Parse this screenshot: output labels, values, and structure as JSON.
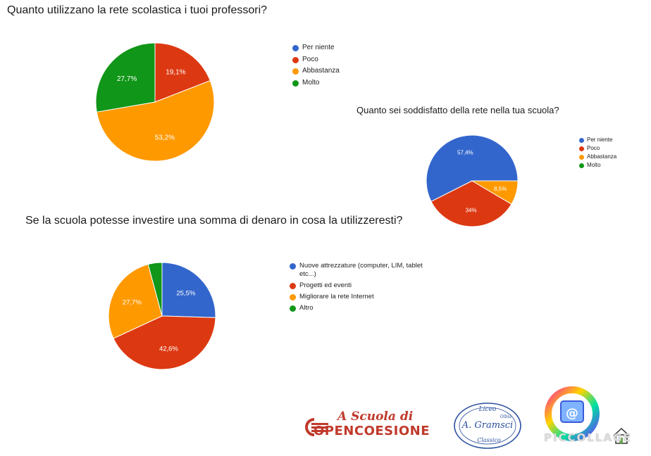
{
  "chart_data": [
    {
      "type": "pie",
      "title": "Quanto utilizzano la rete scolastica i tuoi professori?",
      "categories": [
        "Per niente",
        "Poco",
        "Abbastanza",
        "Molto"
      ],
      "values": [
        0,
        19.1,
        53.2,
        27.7
      ],
      "labels": [
        "",
        "19,1%",
        "53,2%",
        "27,7%"
      ],
      "colors": [
        "#3366cc",
        "#dc3912",
        "#ff9900",
        "#109618"
      ],
      "legend": "right"
    },
    {
      "type": "pie",
      "title": "Quanto sei soddisfatto della rete nella tua scuola?",
      "categories": [
        "Per niente",
        "Poco",
        "Abbastanza",
        "Molto"
      ],
      "values": [
        57.4,
        34,
        8.5,
        0
      ],
      "labels": [
        "57,4%",
        "34%",
        "8,5%",
        ""
      ],
      "colors": [
        "#3366cc",
        "#dc3912",
        "#ff9900",
        "#109618"
      ],
      "legend": "right"
    },
    {
      "type": "pie",
      "title": "Se la scuola potesse investire una somma di denaro in cosa la utilizzeresti?",
      "categories": [
        "Nuove attrezzature (computer, LIM, tablet etc...)",
        "Progetti ed eventi",
        "Migliorare la rete Internet",
        "Altro"
      ],
      "values": [
        25.5,
        42.6,
        27.7,
        4.2
      ],
      "labels": [
        "25,5%",
        "42,6%",
        "27,7%",
        ""
      ],
      "colors": [
        "#3366cc",
        "#dc3912",
        "#ff9900",
        "#109618"
      ],
      "legend": "right"
    }
  ],
  "logos": {
    "opencoesione_top": "A Scuola di",
    "opencoesione_bottom": "OPENCOESIONE",
    "liceo_top": "Liceo",
    "liceo_name": "A. Gramsci",
    "liceo_city": "Olbia",
    "liceo_bottom": "Classico",
    "piccollage": "PICCOLLAGE"
  }
}
